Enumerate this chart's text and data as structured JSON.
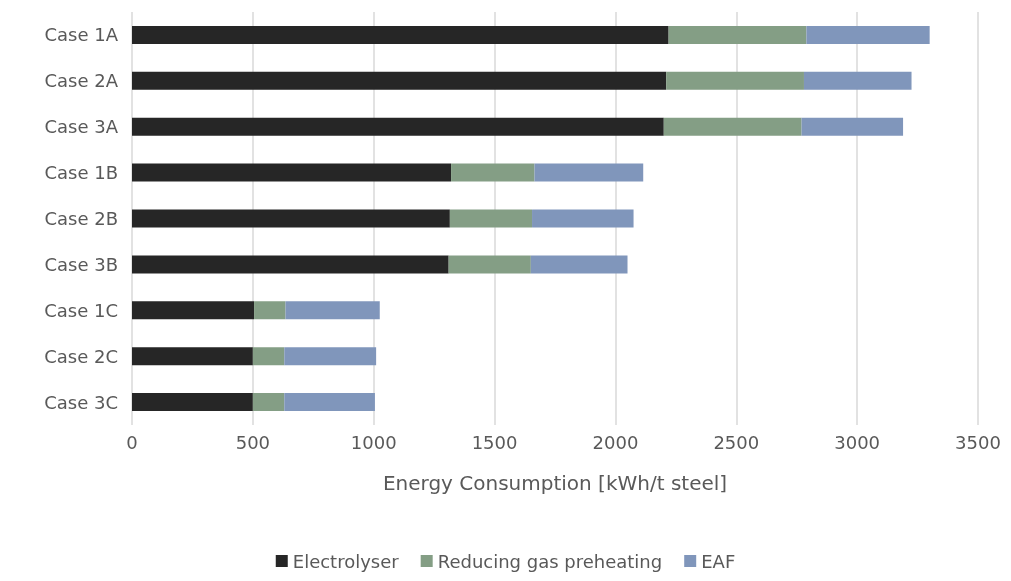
{
  "chart_data": {
    "type": "bar",
    "orientation": "horizontal",
    "stacked": true,
    "xlabel": "Energy Consumption [kWh/t steel]",
    "categories": [
      "Case 1A",
      "Case 2A",
      "Case 3A",
      "Case 1B",
      "Case 2B",
      "Case 3B",
      "Case 1C",
      "Case 2C",
      "Case 3C"
    ],
    "series": [
      {
        "name": "Electrolyser",
        "color": "#262626",
        "values": [
          2220,
          2210,
          2200,
          1320,
          1315,
          1310,
          505,
          500,
          500
        ]
      },
      {
        "name": "Reducing gas preheating",
        "color": "#849e85",
        "values": [
          570,
          570,
          570,
          345,
          340,
          340,
          130,
          130,
          130
        ]
      },
      {
        "name": "EAF",
        "color": "#8096bb",
        "values": [
          510,
          445,
          420,
          450,
          420,
          400,
          390,
          380,
          375
        ]
      }
    ],
    "xlim": [
      0,
      3500
    ],
    "xticks": [
      0,
      500,
      1000,
      1500,
      2000,
      2500,
      3000,
      3500
    ],
    "grid": "x",
    "legend": "bottom"
  }
}
